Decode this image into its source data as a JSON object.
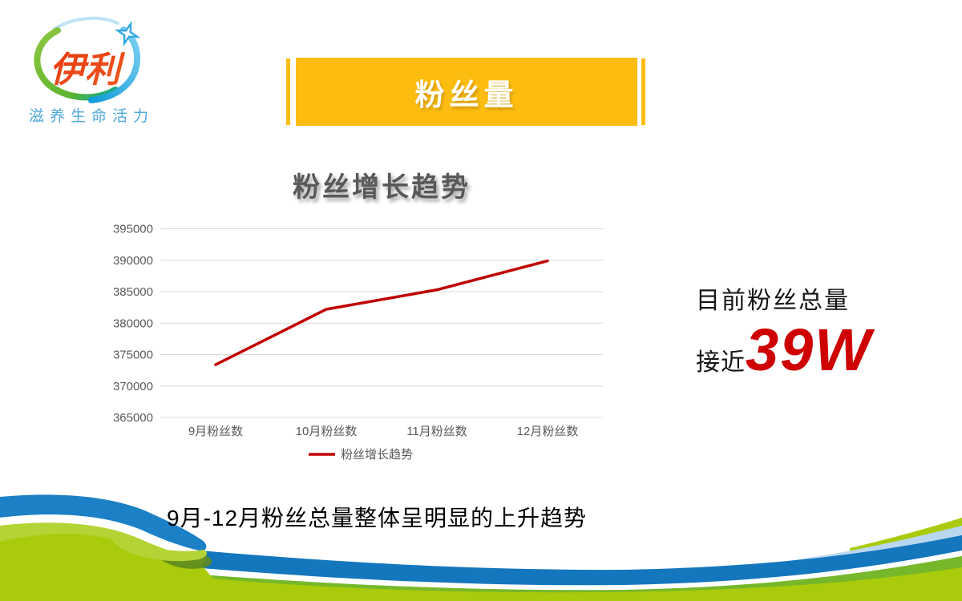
{
  "logo": {
    "brand": "伊利",
    "tagline": "滋养生命活力",
    "brand_color": "#E8380D",
    "tagline_color": "#4FA8DC"
  },
  "banner": {
    "title": "粉丝量",
    "color": "#FCBD10"
  },
  "chart_section": {
    "title": "粉丝增长趋势"
  },
  "chart_data": {
    "type": "line",
    "title": "粉丝增长趋势",
    "categories": [
      "9月粉丝数",
      "10月粉丝数",
      "11月粉丝数",
      "12月粉丝数"
    ],
    "series": [
      {
        "name": "粉丝增长趋势",
        "color": "#C00000",
        "values": [
          373400,
          382200,
          385300,
          389900
        ]
      }
    ],
    "ylim": [
      365000,
      395000
    ],
    "ytick_step": 5000,
    "grid": true,
    "gridline_color": "#D9D9D9",
    "axis_label_color": "#595959",
    "legend_position": "bottom"
  },
  "highlight": {
    "line1": "目前粉丝总量",
    "line2_prefix": "接近",
    "line2_value": "39W",
    "value_color": "#CE0000"
  },
  "caption": "9月-12月粉丝总量整体呈明显的上升趋势",
  "decoration_colors": {
    "ground_green": "#A9CB0B",
    "band_green": "#76B82A",
    "band_blue": "#1477BE",
    "band_lightblue": "#B9D8EF",
    "ribbon_blue": "#1C80C6",
    "ribbon_green": "#B4D334",
    "fold_shadow": "#5E8A1E"
  }
}
